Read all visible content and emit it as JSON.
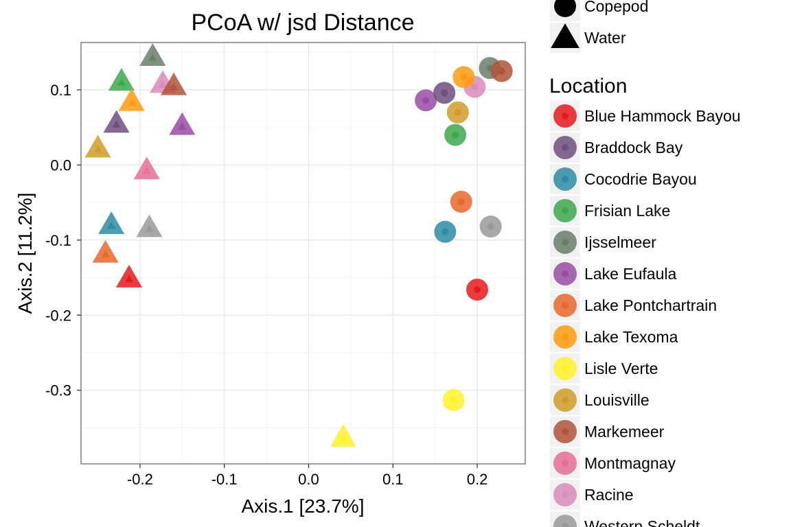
{
  "chart_data": {
    "type": "scatter",
    "title": "PCoA w/ jsd Distance",
    "xlabel": "Axis.1   [23.7%]",
    "ylabel": "Axis.2   [11.2%]",
    "xlim": [
      -0.27,
      0.257
    ],
    "ylim": [
      -0.398,
      0.163
    ],
    "x_ticks": [
      {
        "value": -0.2,
        "label": "-0.2"
      },
      {
        "value": -0.1,
        "label": "-0.1"
      },
      {
        "value": 0.0,
        "label": "0.0"
      },
      {
        "value": 0.1,
        "label": "0.1"
      },
      {
        "value": 0.2,
        "label": "0.2"
      }
    ],
    "y_ticks": [
      {
        "value": 0.1,
        "label": "0.1"
      },
      {
        "value": 0.0,
        "label": "0.0"
      },
      {
        "value": -0.1,
        "label": "-0.1"
      },
      {
        "value": -0.2,
        "label": "-0.2"
      },
      {
        "value": -0.3,
        "label": "-0.3"
      }
    ],
    "grid": true,
    "shape_legend": {
      "title": "",
      "entries": [
        {
          "label": "Copepod",
          "shape": "circle"
        },
        {
          "label": "Water",
          "shape": "triangle"
        }
      ]
    },
    "color_legend": {
      "title": "Location",
      "placement": "right",
      "entries": [
        {
          "label": "Blue Hammock Bayou",
          "color": "#E41A1C"
        },
        {
          "label": "Braddock Bay",
          "color": "#6E4F7C"
        },
        {
          "label": "Cocodrie Bayou",
          "color": "#2D8BA5"
        },
        {
          "label": "Frisian Lake",
          "color": "#3EA84E"
        },
        {
          "label": "Ijsselmeer",
          "color": "#6A7E6A"
        },
        {
          "label": "Lake Eufaula",
          "color": "#984EA3"
        },
        {
          "label": "Lake Pontchartrain",
          "color": "#E6692E"
        },
        {
          "label": "Lake Texoma",
          "color": "#FF9B0E"
        },
        {
          "label": "Lisle Verte",
          "color": "#FFF22A"
        },
        {
          "label": "Louisville",
          "color": "#CF9D2A"
        },
        {
          "label": "Markemeer",
          "color": "#B0543A"
        },
        {
          "label": "Montmagnay",
          "color": "#E56F97"
        },
        {
          "label": "Racine",
          "color": "#D98BBB"
        },
        {
          "label": "Western Scheldt",
          "color": "#999999"
        }
      ]
    },
    "points": [
      {
        "location": "Braddock Bay",
        "type": "Water",
        "x": -0.228,
        "y": 0.053
      },
      {
        "location": "Frisian Lake",
        "type": "Water",
        "x": -0.222,
        "y": 0.109
      },
      {
        "location": "Ijsselmeer",
        "type": "Water",
        "x": -0.185,
        "y": 0.142
      },
      {
        "location": "Racine",
        "type": "Water",
        "x": -0.173,
        "y": 0.106
      },
      {
        "location": "Markemeer",
        "type": "Water",
        "x": -0.16,
        "y": 0.103
      },
      {
        "location": "Lake Texoma",
        "type": "Water",
        "x": -0.21,
        "y": 0.082
      },
      {
        "location": "Lake Eufaula",
        "type": "Water",
        "x": -0.15,
        "y": 0.05
      },
      {
        "location": "Louisville",
        "type": "Water",
        "x": -0.25,
        "y": 0.02
      },
      {
        "location": "Montmagnay",
        "type": "Water",
        "x": -0.192,
        "y": -0.009
      },
      {
        "location": "Cocodrie Bayou",
        "type": "Water",
        "x": -0.234,
        "y": -0.082
      },
      {
        "location": "Western Scheldt",
        "type": "Water",
        "x": -0.189,
        "y": -0.086
      },
      {
        "location": "Lake Pontchartrain",
        "type": "Water",
        "x": -0.241,
        "y": -0.12
      },
      {
        "location": "Blue Hammock Bayou",
        "type": "Water",
        "x": -0.213,
        "y": -0.153
      },
      {
        "location": "Lisle Verte",
        "type": "Water",
        "x": 0.041,
        "y": -0.365
      },
      {
        "location": "Lake Eufaula",
        "type": "Copepod",
        "x": 0.139,
        "y": 0.086
      },
      {
        "location": "Braddock Bay",
        "type": "Copepod",
        "x": 0.161,
        "y": 0.096
      },
      {
        "location": "Louisville",
        "type": "Copepod",
        "x": 0.177,
        "y": 0.07
      },
      {
        "location": "Frisian Lake",
        "type": "Copepod",
        "x": 0.174,
        "y": 0.04
      },
      {
        "location": "Racine",
        "type": "Copepod",
        "x": 0.197,
        "y": 0.104
      },
      {
        "location": "Lake Texoma",
        "type": "Copepod",
        "x": 0.184,
        "y": 0.117
      },
      {
        "location": "Ijsselmeer",
        "type": "Copepod",
        "x": 0.215,
        "y": 0.129
      },
      {
        "location": "Markemeer",
        "type": "Copepod",
        "x": 0.229,
        "y": 0.125
      },
      {
        "location": "Lake Pontchartrain",
        "type": "Copepod",
        "x": 0.181,
        "y": -0.049
      },
      {
        "location": "Cocodrie Bayou",
        "type": "Copepod",
        "x": 0.162,
        "y": -0.089
      },
      {
        "location": "Western Scheldt",
        "type": "Copepod",
        "x": 0.216,
        "y": -0.082
      },
      {
        "location": "Blue Hammock Bayou",
        "type": "Copepod",
        "x": 0.2,
        "y": -0.166
      },
      {
        "location": "Lisle Verte",
        "type": "Copepod",
        "x": 0.172,
        "y": -0.313
      }
    ]
  }
}
